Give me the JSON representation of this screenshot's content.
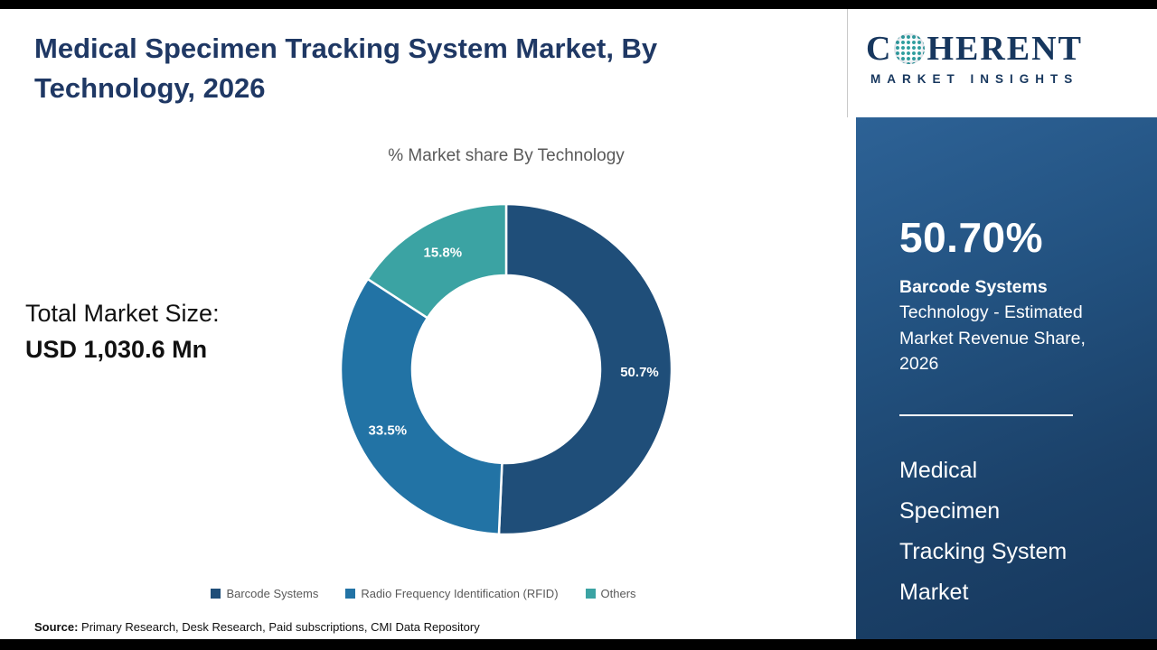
{
  "page": {
    "title": "Medical Specimen Tracking System Market, By Technology, 2026",
    "source_label": "Source:",
    "source_text": " Primary Research, Desk Research, Paid subscriptions, CMI Data Repository"
  },
  "logo": {
    "brand_c": "C",
    "brand_rest": "HERENT",
    "tagline": "MARKET INSIGHTS"
  },
  "left_panel": {
    "total_label": "Total Market Size:",
    "total_value": "USD 1,030.6 Mn"
  },
  "chart_data": {
    "type": "pie",
    "donut": true,
    "title": "% Market share By Technology",
    "categories": [
      "Barcode Systems",
      "Radio Frequency Identification (RFID)",
      "Others"
    ],
    "values": [
      50.7,
      33.5,
      15.8
    ],
    "labels": [
      "50.7%",
      "33.5%",
      "15.8%"
    ],
    "colors": [
      "#1F4E79",
      "#2273A5",
      "#3BA3A3"
    ],
    "legend_position": "bottom",
    "start_angle_deg": 0,
    "direction": "clockwise",
    "inner_radius_ratio": 0.57
  },
  "sidebar": {
    "headline_value": "50.70%",
    "headline_segment": "Barcode Systems",
    "headline_desc": "Technology - Estimated Market Revenue Share, 2026",
    "report_title": "Medical\nSpecimen\nTracking System\nMarket"
  }
}
